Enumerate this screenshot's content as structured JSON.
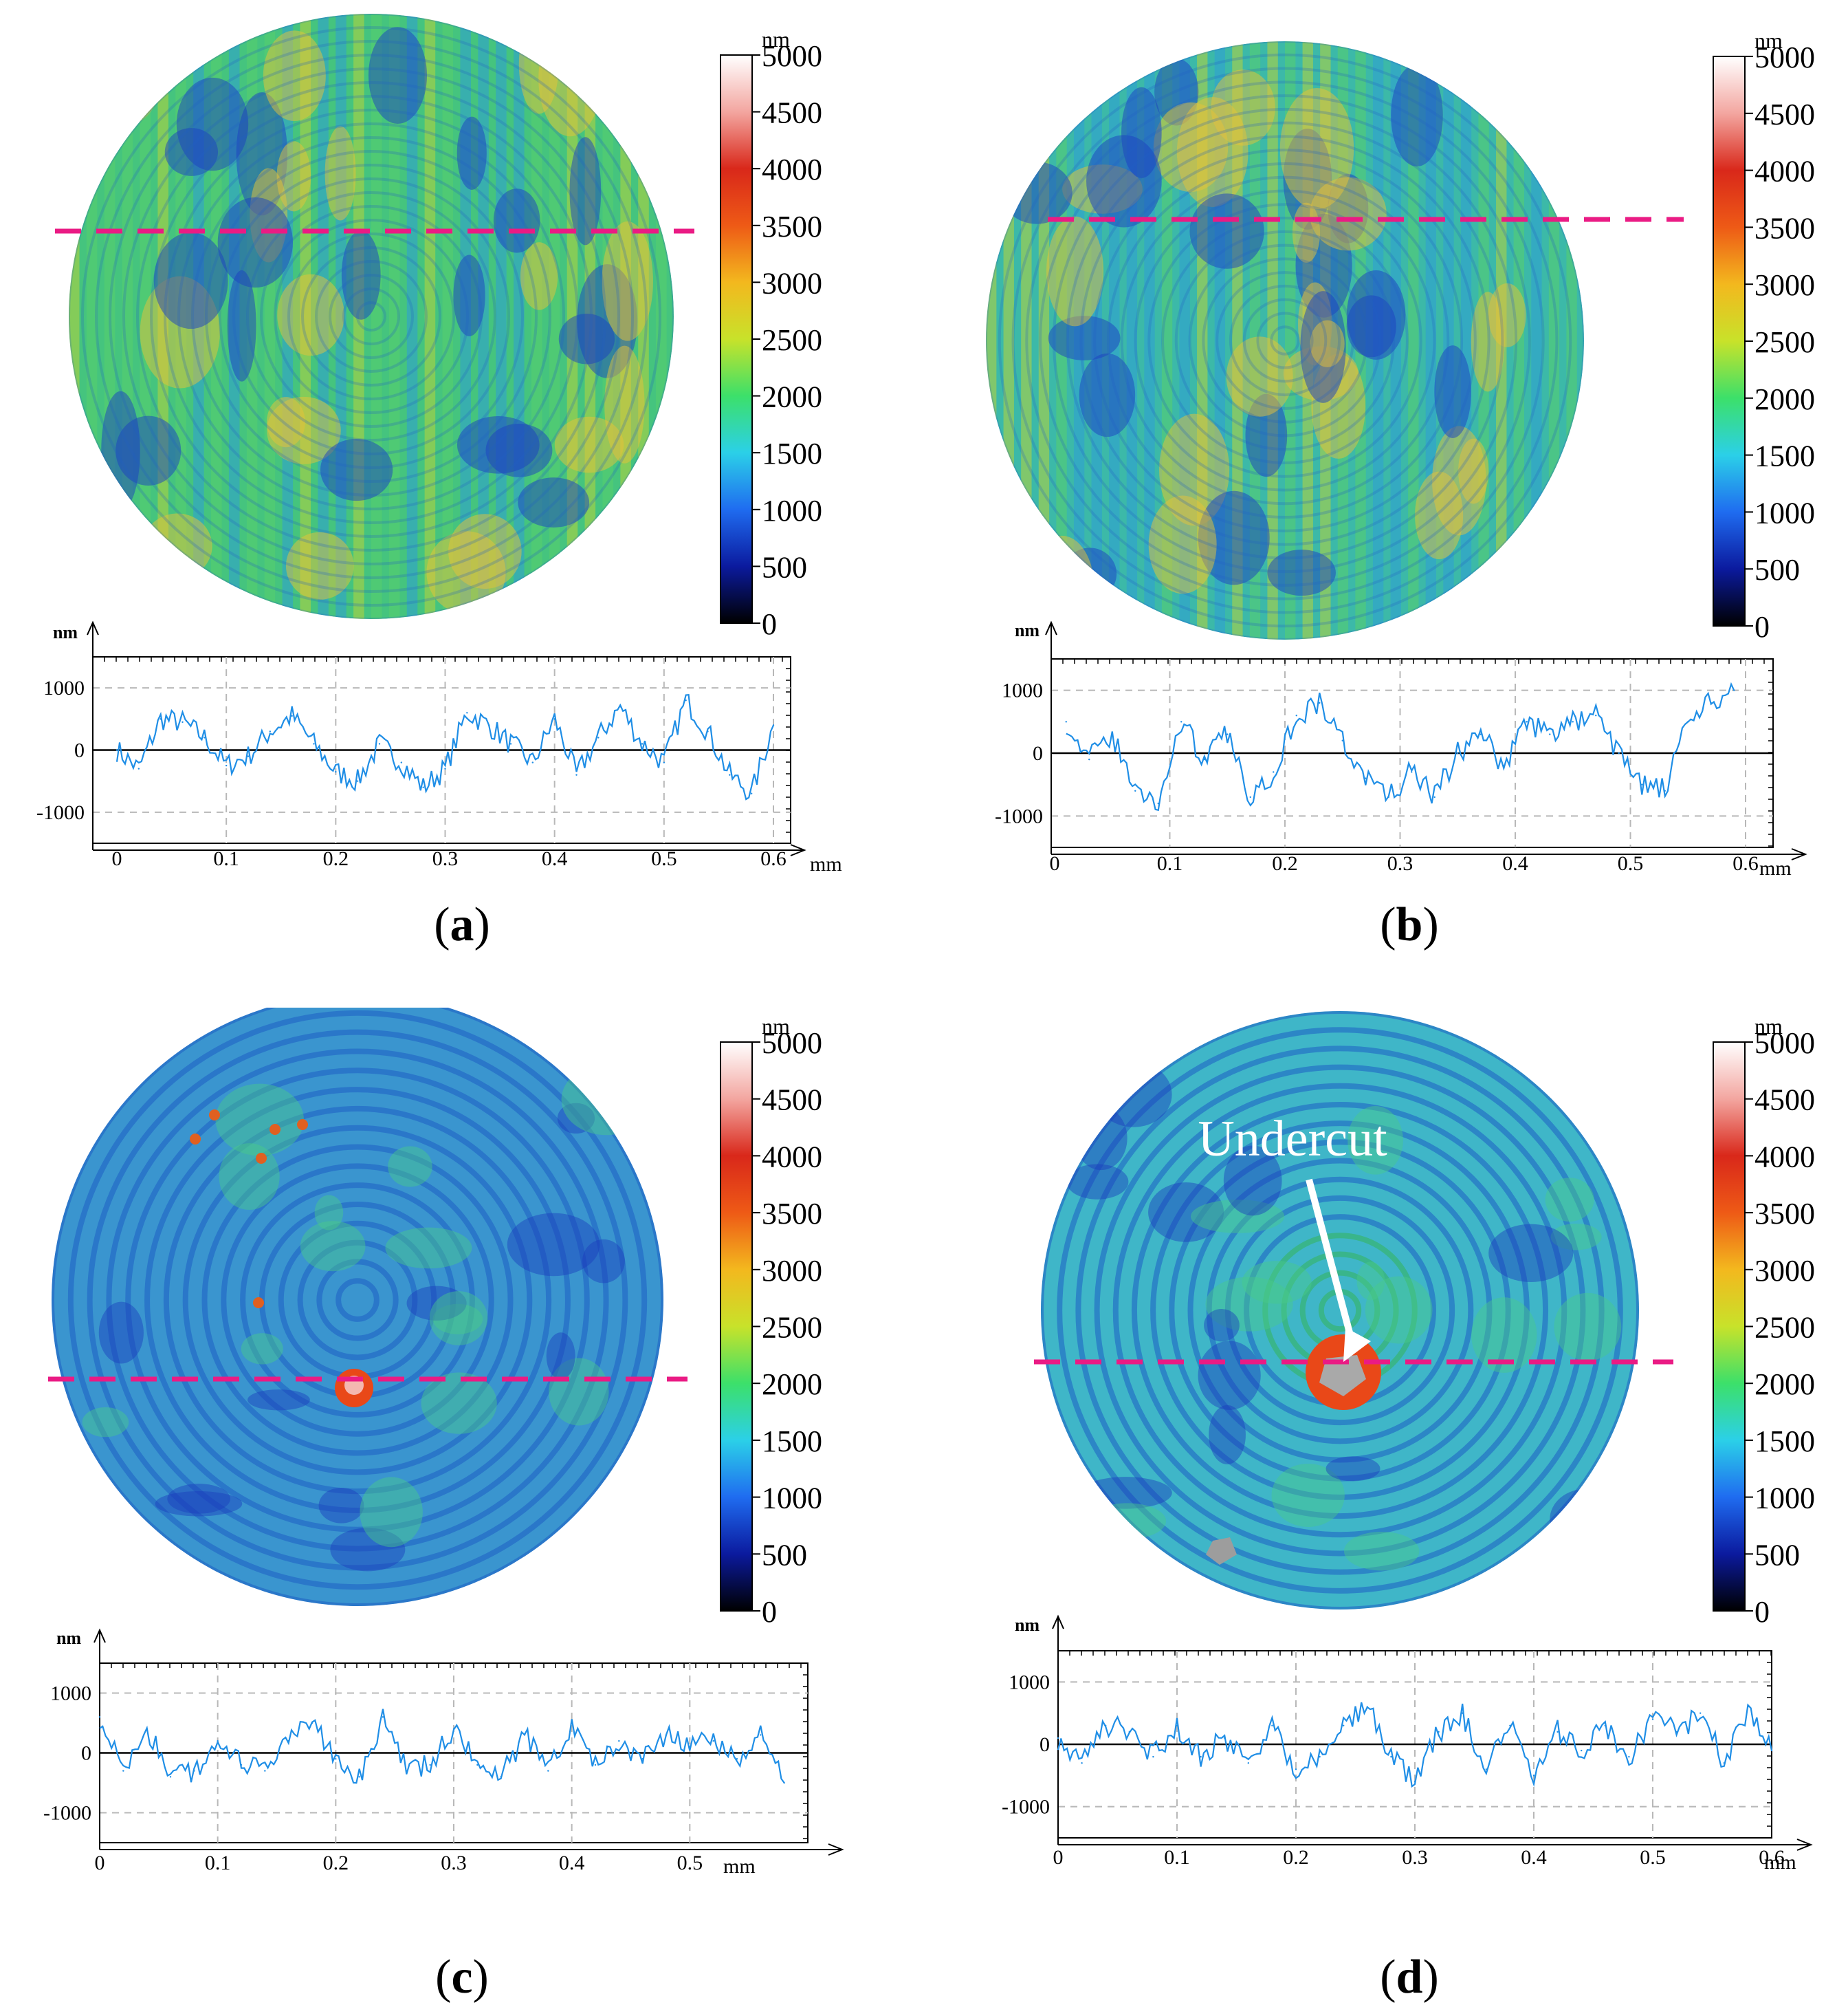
{
  "colorbar": {
    "unit": "nm",
    "ticks": [
      "5000",
      "4500",
      "4000",
      "3500",
      "3000",
      "2500",
      "2000",
      "1500",
      "1000",
      "500",
      "0"
    ],
    "stops": [
      "#000000",
      "#0b1a9e",
      "#1f6cf0",
      "#2bd0e8",
      "#3ce06a",
      "#c8e22a",
      "#f3b81e",
      "#ee5a16",
      "#d9281a",
      "#f3a6a0",
      "#ffffff"
    ]
  },
  "profile_axes": {
    "y_unit": "nm",
    "x_unit": "mm",
    "y_ticks": [
      "1000",
      "0",
      "-1000"
    ],
    "x_ticks": [
      "0",
      "0.1",
      "0.2",
      "0.3",
      "0.4",
      "0.5",
      "0.6"
    ],
    "x_ticks_c": [
      "0",
      "0.1",
      "0.2",
      "0.3",
      "0.4",
      "0.5"
    ]
  },
  "colors": {
    "line": "#1f8ee6",
    "dash": "#ea1b84",
    "zero": "#000000",
    "grid": "#b8b8b8"
  },
  "panels": [
    {
      "label": "a",
      "open": "(",
      "close": ")",
      "annotation": null
    },
    {
      "label": "b",
      "open": "(",
      "close": ")",
      "annotation": null
    },
    {
      "label": "c",
      "open": "(",
      "close": ")",
      "annotation": null
    },
    {
      "label": "d",
      "open": "(",
      "close": ")",
      "annotation": "Undercut"
    }
  ],
  "chart_data": [
    {
      "panel": "a",
      "type": "line",
      "title": "",
      "xlabel": "mm",
      "ylabel": "nm",
      "xlim": [
        0,
        0.6
      ],
      "ylim": [
        -1500,
        1500
      ],
      "x": [
        0,
        0.02,
        0.04,
        0.06,
        0.08,
        0.1,
        0.12,
        0.14,
        0.16,
        0.18,
        0.2,
        0.22,
        0.24,
        0.26,
        0.28,
        0.3,
        0.32,
        0.34,
        0.36,
        0.38,
        0.4,
        0.42,
        0.44,
        0.46,
        0.48,
        0.5,
        0.52,
        0.54,
        0.56,
        0.58,
        0.6
      ],
      "values": [
        0,
        -300,
        500,
        450,
        200,
        -250,
        -100,
        300,
        550,
        100,
        -350,
        -500,
        100,
        -200,
        -600,
        -300,
        600,
        400,
        100,
        -200,
        500,
        -400,
        200,
        700,
        100,
        -200,
        800,
        300,
        -400,
        -700,
        400
      ]
    },
    {
      "panel": "b",
      "type": "line",
      "title": "",
      "xlabel": "mm",
      "ylabel": "nm",
      "xlim": [
        0,
        0.6
      ],
      "ylim": [
        -1500,
        1500
      ],
      "x": [
        0.01,
        0.03,
        0.05,
        0.07,
        0.09,
        0.11,
        0.13,
        0.15,
        0.17,
        0.19,
        0.21,
        0.23,
        0.25,
        0.27,
        0.29,
        0.31,
        0.33,
        0.35,
        0.37,
        0.39,
        0.41,
        0.43,
        0.45,
        0.47,
        0.49,
        0.51,
        0.53,
        0.55,
        0.57,
        0.59
      ],
      "values": [
        500,
        -100,
        300,
        -600,
        -800,
        500,
        -100,
        300,
        -700,
        -300,
        600,
        800,
        200,
        -400,
        -700,
        -300,
        -700,
        0,
        300,
        -200,
        500,
        300,
        500,
        600,
        0,
        -500,
        -600,
        500,
        800,
        1000
      ]
    },
    {
      "panel": "c",
      "type": "line",
      "title": "",
      "xlabel": "mm",
      "ylabel": "nm",
      "xlim": [
        0,
        0.6
      ],
      "ylim": [
        -1500,
        1500
      ],
      "x": [
        0,
        0.02,
        0.04,
        0.06,
        0.08,
        0.1,
        0.12,
        0.14,
        0.16,
        0.18,
        0.2,
        0.22,
        0.24,
        0.26,
        0.28,
        0.3,
        0.32,
        0.34,
        0.36,
        0.38,
        0.4,
        0.42,
        0.44,
        0.46,
        0.48,
        0.5,
        0.52,
        0.54,
        0.56,
        0.58
      ],
      "values": [
        600,
        -300,
        400,
        -400,
        -300,
        200,
        -200,
        -300,
        200,
        500,
        -100,
        -400,
        600,
        -300,
        -200,
        400,
        -200,
        -400,
        300,
        -300,
        500,
        -200,
        200,
        -100,
        300,
        100,
        200,
        -100,
        300,
        -500
      ]
    },
    {
      "panel": "d",
      "type": "line",
      "title": "",
      "xlabel": "mm",
      "ylabel": "nm",
      "xlim": [
        0,
        0.6
      ],
      "ylim": [
        -1500,
        1500
      ],
      "x": [
        0,
        0.02,
        0.04,
        0.06,
        0.08,
        0.1,
        0.12,
        0.14,
        0.16,
        0.18,
        0.2,
        0.22,
        0.24,
        0.26,
        0.28,
        0.3,
        0.32,
        0.34,
        0.36,
        0.38,
        0.4,
        0.42,
        0.44,
        0.46,
        0.48,
        0.5,
        0.52,
        0.54,
        0.56,
        0.58,
        0.6
      ],
      "values": [
        100,
        -300,
        300,
        200,
        -200,
        300,
        -200,
        100,
        -300,
        300,
        -400,
        -200,
        300,
        600,
        -200,
        -600,
        200,
        500,
        -400,
        300,
        -500,
        200,
        -100,
        300,
        -200,
        400,
        200,
        500,
        -300,
        600,
        -100
      ]
    }
  ]
}
